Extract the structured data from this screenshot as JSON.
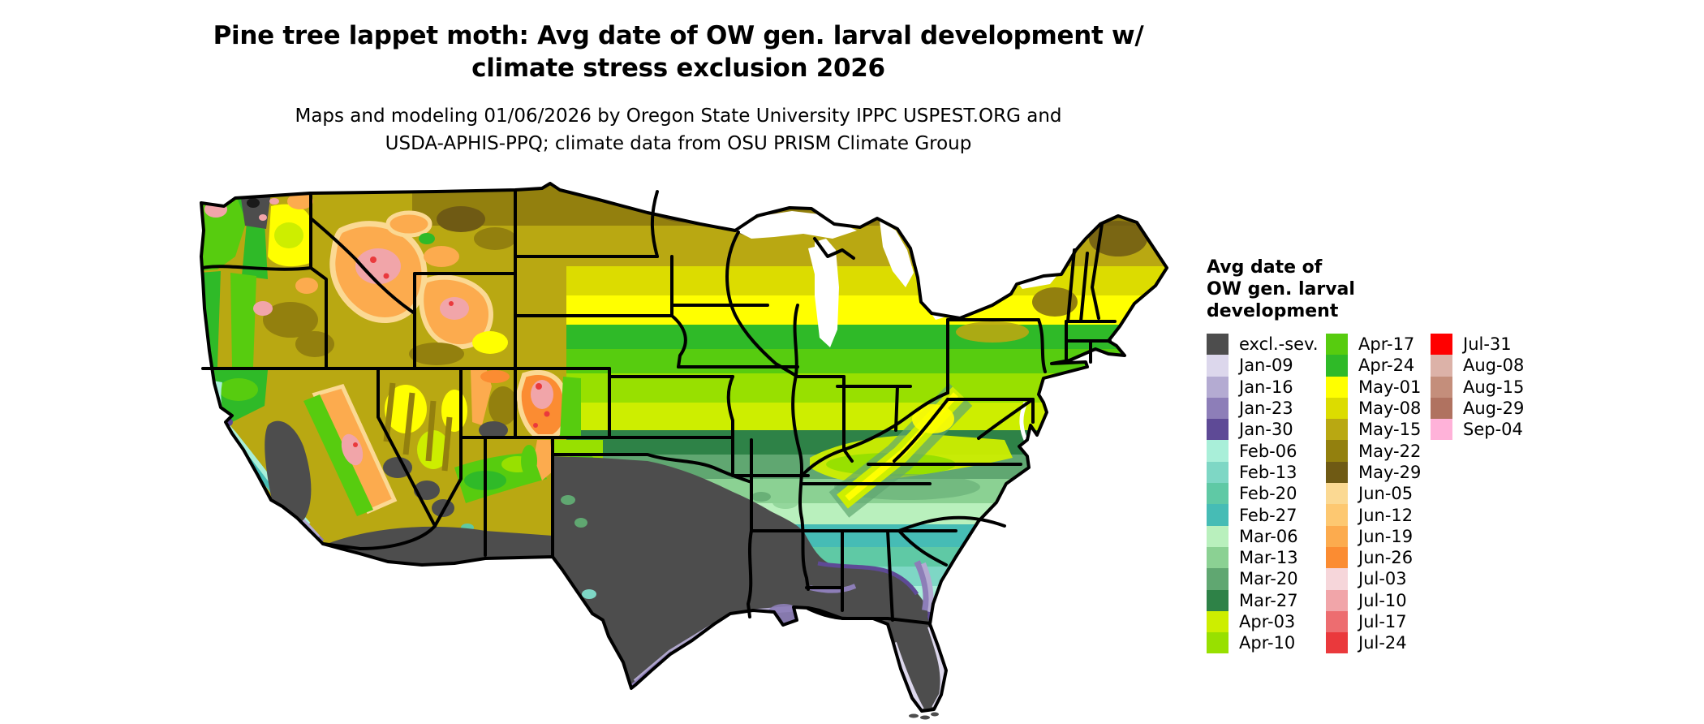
{
  "header": {
    "title_line1": "Pine tree lappet moth: Avg date of OW gen. larval development w/",
    "title_line2": "climate stress exclusion 2026",
    "subtitle_line1": "Maps and modeling 01/06/2026 by Oregon State University IPPC USPEST.ORG and",
    "subtitle_line2": "USDA-APHIS-PPQ; climate data from OSU PRISM Climate Group"
  },
  "legend": {
    "title_lines": [
      "Avg date of",
      "OW gen. larval",
      "development"
    ],
    "columns": [
      [
        {
          "label": "excl.-sev.",
          "color": "#4d4d4d"
        },
        {
          "label": "Jan-09",
          "color": "#dcd7ec"
        },
        {
          "label": "Jan-16",
          "color": "#b4abd2"
        },
        {
          "label": "Jan-23",
          "color": "#8d7eb8"
        },
        {
          "label": "Jan-30",
          "color": "#5e4a96"
        },
        {
          "label": "Feb-06",
          "color": "#a9efd9"
        },
        {
          "label": "Feb-13",
          "color": "#7ed7c5"
        },
        {
          "label": "Feb-20",
          "color": "#5fc9a5"
        },
        {
          "label": "Feb-27",
          "color": "#46bcb5"
        },
        {
          "label": "Mar-06",
          "color": "#b9f0bd"
        },
        {
          "label": "Mar-13",
          "color": "#8bd193"
        },
        {
          "label": "Mar-20",
          "color": "#60a771"
        },
        {
          "label": "Mar-27",
          "color": "#2e8247"
        },
        {
          "label": "Apr-03",
          "color": "#cdee00"
        },
        {
          "label": "Apr-10",
          "color": "#98e000"
        }
      ],
      [
        {
          "label": "Apr-17",
          "color": "#57cc0f"
        },
        {
          "label": "Apr-24",
          "color": "#2fba28"
        },
        {
          "label": "May-01",
          "color": "#ffff00"
        },
        {
          "label": "May-08",
          "color": "#dcdc00"
        },
        {
          "label": "May-15",
          "color": "#b9a812"
        },
        {
          "label": "May-22",
          "color": "#93800e"
        },
        {
          "label": "May-29",
          "color": "#6f5a14"
        },
        {
          "label": "Jun-05",
          "color": "#fbd993"
        },
        {
          "label": "Jun-12",
          "color": "#fdc871"
        },
        {
          "label": "Jun-19",
          "color": "#fcab4e"
        },
        {
          "label": "Jun-26",
          "color": "#fb8c32"
        },
        {
          "label": "Jul-03",
          "color": "#f6d6da"
        },
        {
          "label": "Jul-10",
          "color": "#f1a5a9"
        },
        {
          "label": "Jul-17",
          "color": "#ed6d70"
        },
        {
          "label": "Jul-24",
          "color": "#ea393c"
        }
      ],
      [
        {
          "label": "Jul-31",
          "color": "#ff0000"
        },
        {
          "label": "Aug-08",
          "color": "#dcb2a8"
        },
        {
          "label": "Aug-15",
          "color": "#c48e7b"
        },
        {
          "label": "Aug-29",
          "color": "#b07260"
        },
        {
          "label": "Sep-04",
          "color": "#ffb2d9"
        }
      ]
    ]
  },
  "map": {
    "region": "Contiguous United States",
    "excluded_label": "excl.-sev.",
    "colors": {
      "excluded": "#4d4d4d",
      "state_border": "#000000",
      "water": "#ffffff"
    }
  }
}
